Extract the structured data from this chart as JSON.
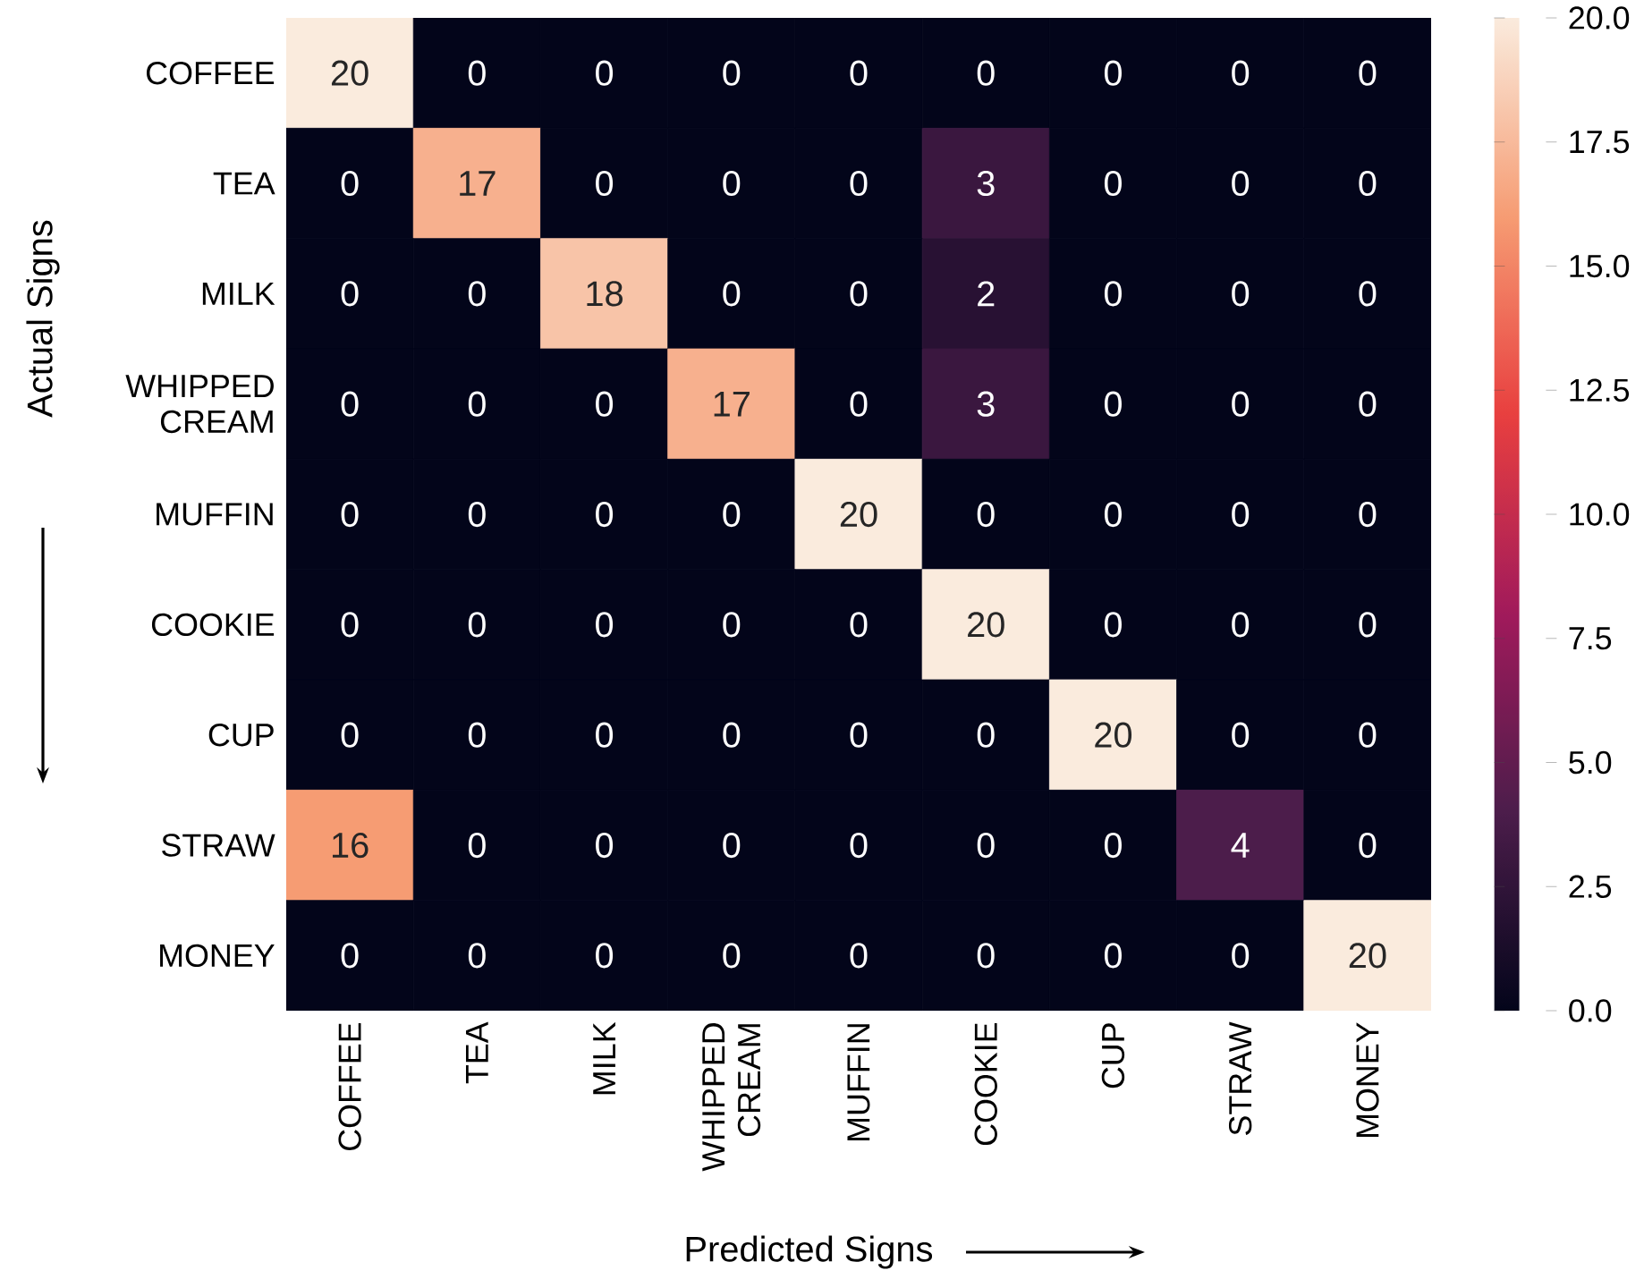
{
  "chart_data": {
    "type": "heatmap",
    "categories": [
      "COFFEE",
      "TEA",
      "MILK",
      "WHIPPED CREAM",
      "MUFFIN",
      "COOKIE",
      "CUP",
      "STRAW",
      "MONEY"
    ],
    "y_categories": [
      "COFFEE",
      "TEA",
      "MILK",
      "WHIPPED CREAM",
      "MUFFIN",
      "COOKIE",
      "CUP",
      "STRAW",
      "MONEY"
    ],
    "cells": [
      [
        20,
        0,
        0,
        0,
        0,
        0,
        0,
        0,
        0
      ],
      [
        0,
        17,
        0,
        0,
        0,
        3,
        0,
        0,
        0
      ],
      [
        0,
        0,
        18,
        0,
        0,
        2,
        0,
        0,
        0
      ],
      [
        0,
        0,
        0,
        17,
        0,
        3,
        0,
        0,
        0
      ],
      [
        0,
        0,
        0,
        0,
        20,
        0,
        0,
        0,
        0
      ],
      [
        0,
        0,
        0,
        0,
        0,
        20,
        0,
        0,
        0
      ],
      [
        0,
        0,
        0,
        0,
        0,
        0,
        20,
        0,
        0
      ],
      [
        16,
        0,
        0,
        0,
        0,
        0,
        0,
        4,
        0
      ],
      [
        0,
        0,
        0,
        0,
        0,
        0,
        0,
        0,
        20
      ]
    ],
    "clim": [
      0,
      20
    ],
    "cticks": [
      {
        "value": 0,
        "label": "0.0"
      },
      {
        "value": 2.5,
        "label": "2.5"
      },
      {
        "value": 5,
        "label": "5.0"
      },
      {
        "value": 7.5,
        "label": "7.5"
      },
      {
        "value": 10,
        "label": "10.0"
      },
      {
        "value": 12.5,
        "label": "12.5"
      },
      {
        "value": 15,
        "label": "15.0"
      },
      {
        "value": 17.5,
        "label": "17.5"
      },
      {
        "value": 20,
        "label": "20.0"
      }
    ],
    "xlabel": "Predicted Signs",
    "ylabel": "Actual Signs",
    "data_labels": true
  }
}
